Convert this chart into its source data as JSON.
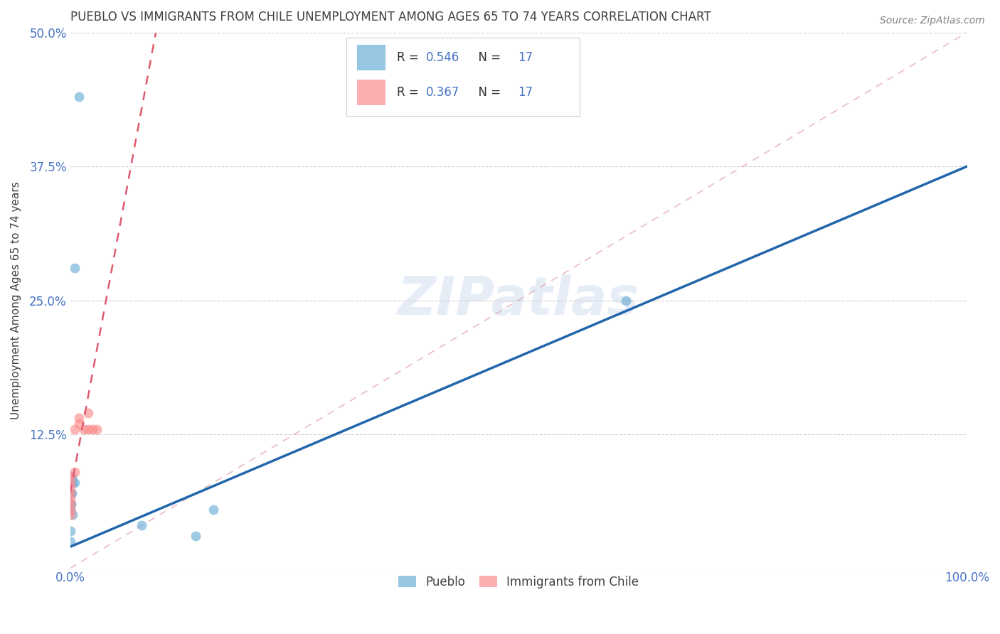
{
  "title": "PUEBLO VS IMMIGRANTS FROM CHILE UNEMPLOYMENT AMONG AGES 65 TO 74 YEARS CORRELATION CHART",
  "source": "Source: ZipAtlas.com",
  "ylabel": "Unemployment Among Ages 65 to 74 years",
  "xlim": [
    0,
    1.0
  ],
  "ylim": [
    0,
    0.5
  ],
  "ytick_positions": [
    0.0,
    0.125,
    0.25,
    0.375,
    0.5
  ],
  "ytick_labels": [
    "",
    "12.5%",
    "25.0%",
    "37.5%",
    "50.0%"
  ],
  "xtick_positions": [
    0.0,
    0.25,
    0.5,
    0.75,
    1.0
  ],
  "xtick_labels": [
    "0.0%",
    "",
    "",
    "",
    "100.0%"
  ],
  "pueblo_color": "#6baed6",
  "chile_color": "#fc8d8d",
  "pueblo_line_color": "#2166ac",
  "chile_line_color": "#e05a6e",
  "ref_line_color": "#e0a0a8",
  "pueblo_R": 0.546,
  "pueblo_N": 17,
  "chile_R": 0.367,
  "chile_N": 17,
  "watermark": "ZIPatlas",
  "pueblo_x": [
    0.005,
    0.01,
    0.005,
    0.003,
    0.002,
    0.001,
    0.0015,
    0.0025,
    0.002,
    0.001,
    0.0,
    0.0,
    0.16,
    0.08,
    0.62,
    0.14,
    0.0
  ],
  "pueblo_y": [
    0.28,
    0.44,
    0.08,
    0.05,
    0.085,
    0.07,
    0.06,
    0.08,
    0.07,
    0.06,
    0.055,
    0.035,
    0.055,
    0.04,
    0.25,
    0.03,
    0.025
  ],
  "chile_x": [
    0.0,
    0.0,
    0.0,
    0.0,
    0.0,
    0.0,
    0.0,
    0.0,
    0.005,
    0.005,
    0.01,
    0.01,
    0.015,
    0.02,
    0.02,
    0.025,
    0.03
  ],
  "chile_y": [
    0.05,
    0.055,
    0.06,
    0.065,
    0.07,
    0.075,
    0.08,
    0.085,
    0.09,
    0.13,
    0.135,
    0.14,
    0.13,
    0.145,
    0.13,
    0.13,
    0.13
  ],
  "bg_color": "#ffffff",
  "grid_color": "#d0d0d0",
  "title_color": "#404040",
  "tick_color": "#4472c4",
  "ylabel_color": "#404040",
  "source_color": "#808080",
  "legend_box_edge": "#cccccc",
  "marker_size": 100,
  "blue_line_slope": 0.355,
  "blue_line_intercept": 0.02,
  "pink_line_slope": 4.5,
  "pink_line_intercept": 0.07
}
